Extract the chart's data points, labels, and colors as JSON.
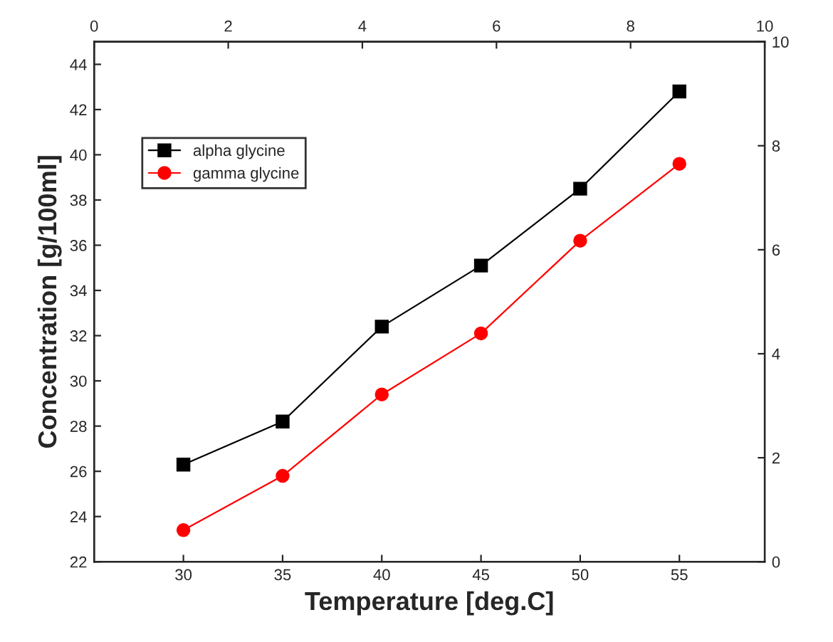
{
  "chart_data": {
    "type": "line",
    "xlabel": "Temperature [deg.C]",
    "ylabel": "Concentration [g/100ml]",
    "x": [
      30,
      35,
      40,
      45,
      50,
      55
    ],
    "series": [
      {
        "name": "alpha glycine",
        "color": "#000000",
        "marker": "square",
        "values": [
          26.3,
          28.2,
          32.4,
          35.1,
          38.5,
          42.8
        ]
      },
      {
        "name": "gamma glycine",
        "color": "#ff0000",
        "marker": "circle",
        "values": [
          23.4,
          25.8,
          29.4,
          32.1,
          36.2,
          39.6
        ]
      }
    ],
    "xlim": [
      25.5,
      59.3
    ],
    "xticks": [
      30,
      35,
      40,
      45,
      50,
      55
    ],
    "x2lim": [
      0,
      10
    ],
    "x2ticks": [
      0,
      2,
      4,
      6,
      8,
      10
    ],
    "ylim": [
      22,
      45
    ],
    "yticks": [
      22,
      24,
      26,
      28,
      30,
      32,
      34,
      36,
      38,
      40,
      42,
      44
    ],
    "y2lim": [
      0,
      10
    ],
    "y2ticks": [
      0,
      2,
      4,
      6,
      8,
      10
    ],
    "grid": false,
    "legend": "top left",
    "line_style": "solid"
  }
}
